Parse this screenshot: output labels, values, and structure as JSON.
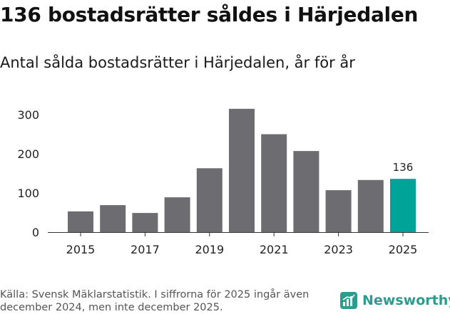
{
  "header": {
    "title": "136 bostadsrätter såldes i Härjedalen",
    "subtitle": "Antal sålda bostadsrätter i Härjedalen, år för år"
  },
  "footer": {
    "source": "Källa: Svensk Mäklarstatistik. I siffrorna för 2025 ingår även december 2024, men inte december 2025.",
    "brand": "Newsworthy",
    "brand_icon": "newsworthy-logo-icon"
  },
  "colors": {
    "bar": "#6d6c71",
    "highlight": "#00a398",
    "axis": "#333333",
    "brand": "#2e9b8f"
  },
  "chart_data": {
    "type": "bar",
    "title": "Antal sålda bostadsrätter i Härjedalen, år för år",
    "xlabel": "",
    "ylabel": "",
    "categories": [
      "2015",
      "2016",
      "2017",
      "2018",
      "2019",
      "2020",
      "2021",
      "2022",
      "2023",
      "2024",
      "2025"
    ],
    "values": [
      53,
      69,
      49,
      89,
      163,
      315,
      250,
      207,
      107,
      133,
      136
    ],
    "x_tick_labels": [
      "2015",
      "2017",
      "2019",
      "2021",
      "2023",
      "2025"
    ],
    "y_ticks": [
      0,
      100,
      200,
      300
    ],
    "ylim": [
      0,
      320
    ],
    "highlight_category": "2025",
    "annotations": [
      {
        "category": "2025",
        "label": "136"
      }
    ],
    "grid": false,
    "legend": "none"
  }
}
